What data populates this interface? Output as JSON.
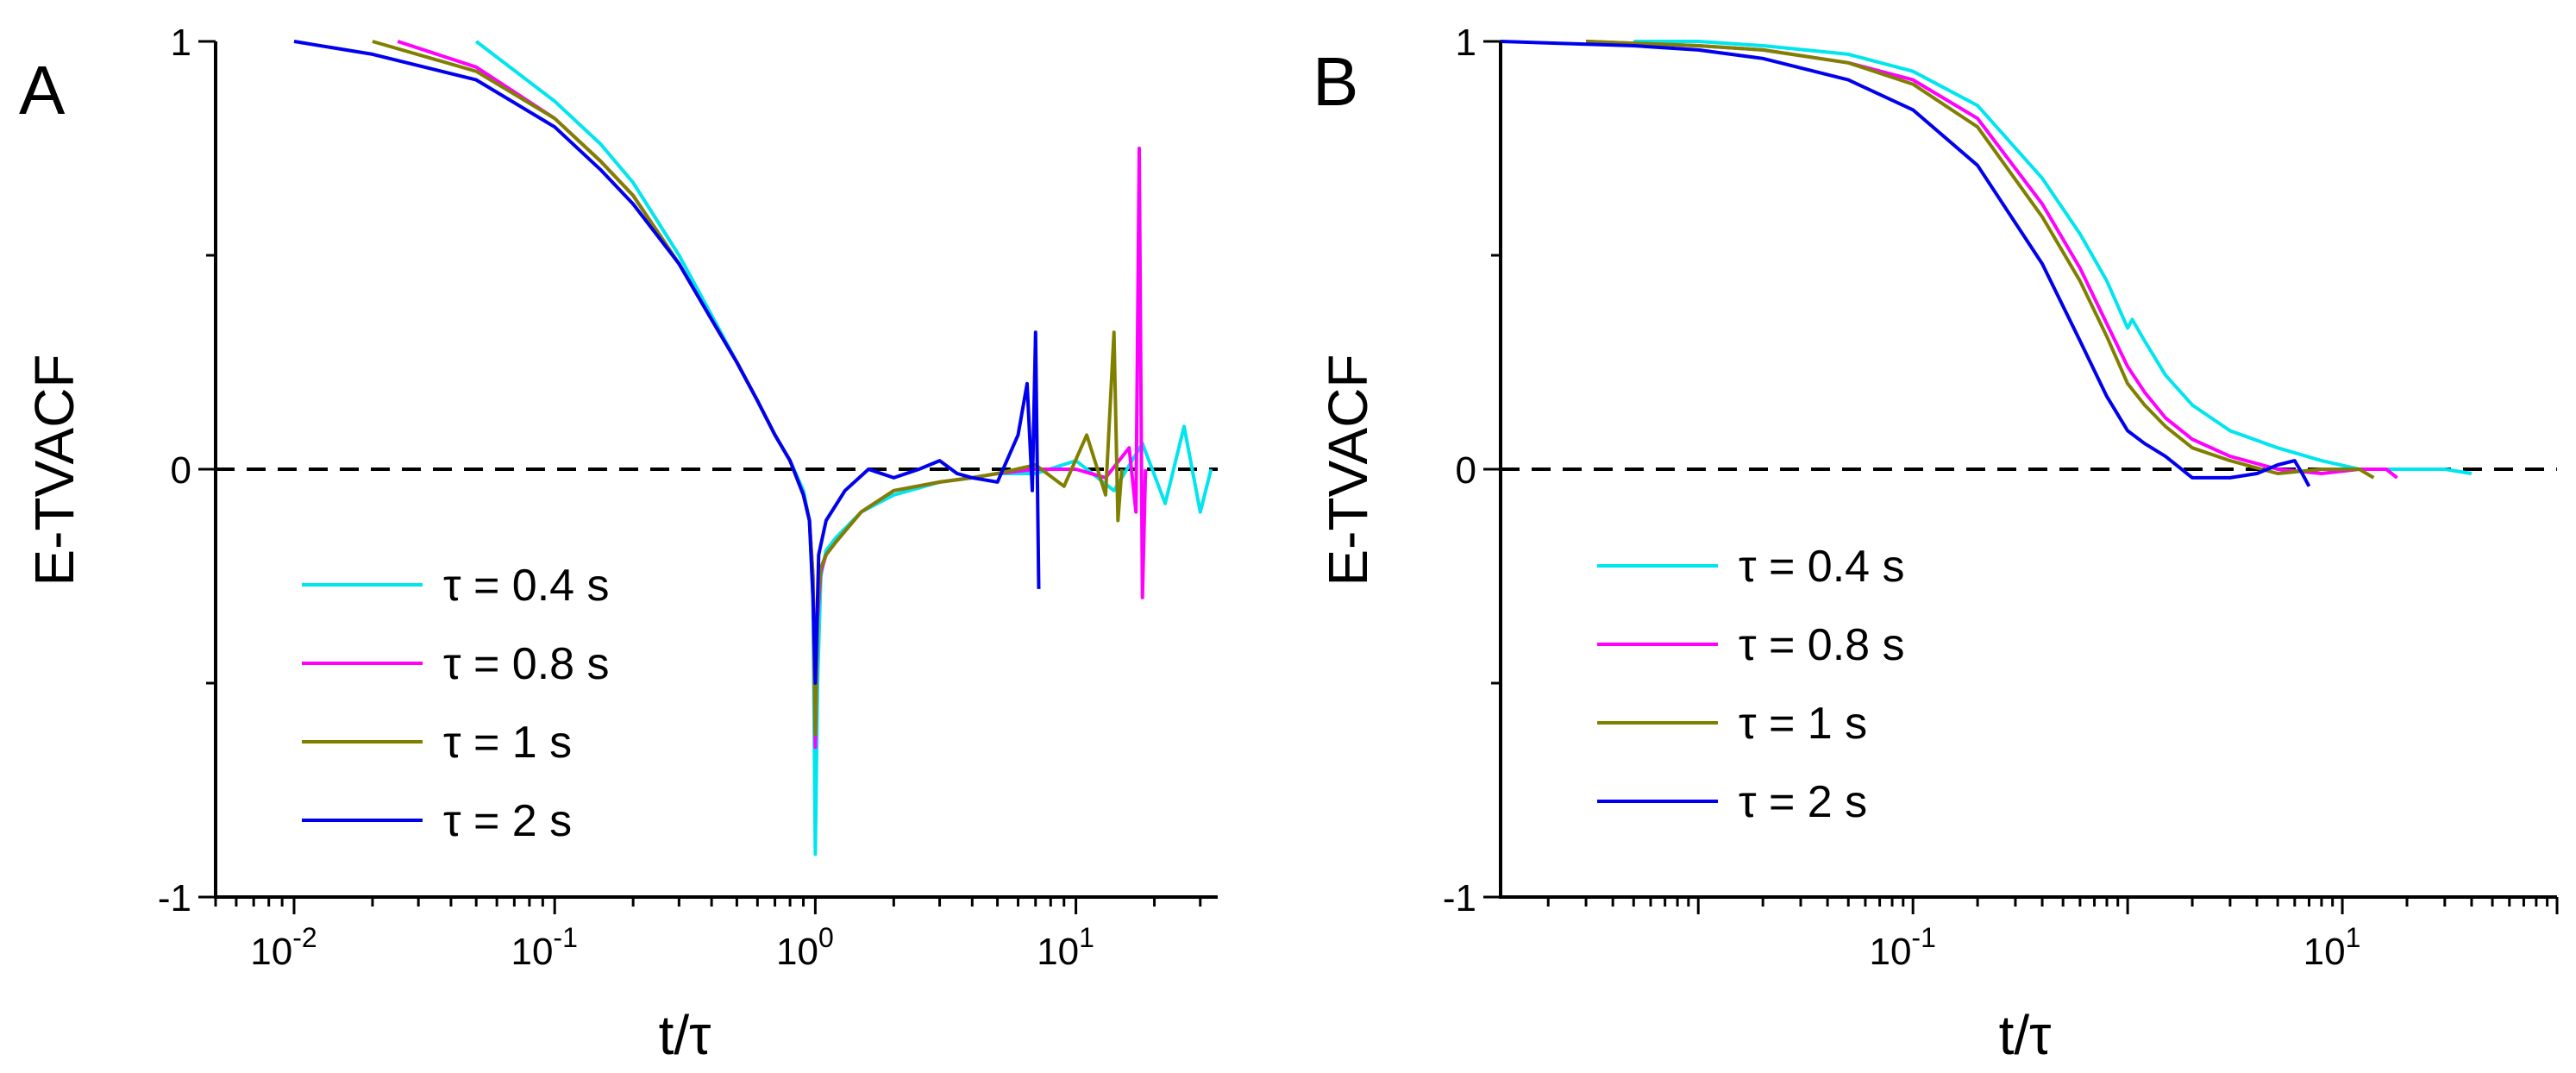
{
  "chart_data": [
    {
      "panel": "A",
      "type": "line",
      "xscale": "log",
      "xlabel": "t/τ",
      "ylabel": "E-TVACF",
      "xlim": [
        0.005,
        35
      ],
      "ylim": [
        -1,
        1
      ],
      "x_ticks": [
        {
          "value": 0.01,
          "label": "10",
          "exp": "-2"
        },
        {
          "value": 0.1,
          "label": "10",
          "exp": "-1"
        },
        {
          "value": 1,
          "label": "10",
          "exp": "0"
        },
        {
          "value": 10,
          "label": "10",
          "exp": "1"
        }
      ],
      "y_ticks": [
        {
          "value": 1,
          "label": "1"
        },
        {
          "value": 0,
          "label": "0"
        },
        {
          "value": -1,
          "label": "-1"
        }
      ],
      "reference_line": {
        "y": 0,
        "style": "dashed"
      },
      "legend_position": "bottom-left",
      "series": [
        {
          "name": "τ = 0.4 s",
          "color": "#00e5ee",
          "x": [
            0.05,
            0.1,
            0.15,
            0.2,
            0.3,
            0.4,
            0.5,
            0.6,
            0.7,
            0.8,
            0.9,
            0.95,
            0.98,
            1.0,
            1.02,
            1.05,
            1.1,
            1.2,
            1.5,
            2,
            3,
            4,
            5,
            7,
            10,
            14,
            18,
            22,
            26,
            30,
            33
          ],
          "y": [
            1,
            0.86,
            0.76,
            0.67,
            0.5,
            0.36,
            0.25,
            0.16,
            0.08,
            0.02,
            -0.05,
            -0.12,
            -0.3,
            -0.9,
            -0.5,
            -0.25,
            -0.19,
            -0.16,
            -0.1,
            -0.06,
            -0.03,
            -0.02,
            -0.01,
            -0.01,
            0.02,
            -0.05,
            0.06,
            -0.08,
            0.1,
            -0.1,
            0.0
          ]
        },
        {
          "name": "τ = 0.8 s",
          "color": "#ff00ff",
          "x": [
            0.025,
            0.05,
            0.1,
            0.15,
            0.2,
            0.3,
            0.4,
            0.5,
            0.6,
            0.7,
            0.8,
            0.9,
            0.95,
            0.98,
            1.0,
            1.02,
            1.05,
            1.1,
            1.2,
            1.5,
            2,
            3,
            4,
            5,
            7,
            10,
            13,
            16,
            17,
            17.5,
            18,
            18.5
          ],
          "y": [
            1,
            0.94,
            0.82,
            0.72,
            0.64,
            0.48,
            0.35,
            0.25,
            0.16,
            0.08,
            0.02,
            -0.06,
            -0.12,
            -0.25,
            -0.65,
            -0.35,
            -0.24,
            -0.2,
            -0.17,
            -0.1,
            -0.05,
            -0.03,
            -0.02,
            -0.01,
            0.0,
            0.0,
            -0.02,
            0.05,
            -0.1,
            0.75,
            -0.3,
            0.0
          ]
        },
        {
          "name": "τ = 1 s",
          "color": "#808000",
          "x": [
            0.02,
            0.05,
            0.1,
            0.15,
            0.2,
            0.3,
            0.4,
            0.5,
            0.6,
            0.7,
            0.8,
            0.9,
            0.95,
            0.98,
            1.0,
            1.02,
            1.05,
            1.1,
            1.2,
            1.5,
            2,
            3,
            4,
            5,
            7,
            9,
            11,
            13,
            14,
            14.5,
            15
          ],
          "y": [
            1,
            0.93,
            0.82,
            0.72,
            0.64,
            0.48,
            0.35,
            0.25,
            0.16,
            0.08,
            0.02,
            -0.06,
            -0.12,
            -0.25,
            -0.62,
            -0.33,
            -0.23,
            -0.2,
            -0.17,
            -0.1,
            -0.05,
            -0.03,
            -0.02,
            -0.01,
            0.01,
            -0.04,
            0.08,
            -0.06,
            0.32,
            -0.12,
            0.0
          ]
        },
        {
          "name": "τ = 2 s",
          "color": "#0000ee",
          "x": [
            0.01,
            0.02,
            0.05,
            0.1,
            0.15,
            0.2,
            0.3,
            0.4,
            0.5,
            0.6,
            0.7,
            0.8,
            0.9,
            0.95,
            0.98,
            1.0,
            1.03,
            1.1,
            1.3,
            1.6,
            2,
            2.5,
            3,
            3.5,
            4,
            5,
            6,
            6.5,
            6.8,
            7.0,
            7.2
          ],
          "y": [
            1,
            0.97,
            0.91,
            0.8,
            0.7,
            0.62,
            0.48,
            0.35,
            0.25,
            0.16,
            0.08,
            0.02,
            -0.06,
            -0.12,
            -0.3,
            -0.5,
            -0.2,
            -0.12,
            -0.05,
            0.0,
            -0.02,
            0.0,
            0.02,
            -0.01,
            -0.02,
            -0.03,
            0.08,
            0.2,
            -0.05,
            0.32,
            -0.28
          ]
        }
      ],
      "panel_letter": "A"
    },
    {
      "panel": "B",
      "type": "line",
      "xscale": "log",
      "xlabel": "t/τ",
      "ylabel": "E-TVACF",
      "xlim": [
        0.0012,
        100
      ],
      "ylim": [
        -1,
        1
      ],
      "x_ticks": [
        {
          "value": 0.1,
          "label": "10",
          "exp": "-1"
        },
        {
          "value": 10,
          "label": "10",
          "exp": "1"
        }
      ],
      "y_ticks": [
        {
          "value": 1,
          "label": "1"
        },
        {
          "value": 0,
          "label": "0"
        },
        {
          "value": -1,
          "label": "-1"
        }
      ],
      "reference_line": {
        "y": 0,
        "style": "dashed"
      },
      "legend_position": "bottom-left",
      "series": [
        {
          "name": "τ = 0.4 s",
          "color": "#00e5ee",
          "x": [
            0.005,
            0.01,
            0.02,
            0.05,
            0.1,
            0.2,
            0.4,
            0.6,
            0.8,
            1.0,
            1.05,
            1.2,
            1.5,
            2,
            3,
            5,
            8,
            12,
            20,
            30,
            40
          ],
          "y": [
            1,
            1,
            0.99,
            0.97,
            0.93,
            0.85,
            0.68,
            0.55,
            0.44,
            0.33,
            0.35,
            0.3,
            0.22,
            0.15,
            0.09,
            0.05,
            0.02,
            0.0,
            0.0,
            0.0,
            -0.01
          ]
        },
        {
          "name": "τ = 0.8 s",
          "color": "#ff00ff",
          "x": [
            0.003,
            0.01,
            0.02,
            0.05,
            0.1,
            0.2,
            0.4,
            0.6,
            0.8,
            1.0,
            1.2,
            1.5,
            2,
            3,
            5,
            8,
            12,
            16,
            18
          ],
          "y": [
            1,
            0.99,
            0.98,
            0.95,
            0.91,
            0.82,
            0.62,
            0.47,
            0.34,
            0.24,
            0.18,
            0.12,
            0.07,
            0.03,
            0.0,
            -0.01,
            0.0,
            0.0,
            -0.02
          ]
        },
        {
          "name": "τ = 1 s",
          "color": "#808000",
          "x": [
            0.003,
            0.01,
            0.02,
            0.05,
            0.1,
            0.2,
            0.4,
            0.6,
            0.8,
            1.0,
            1.2,
            1.5,
            2,
            3,
            5,
            8,
            12,
            14
          ],
          "y": [
            1,
            0.99,
            0.98,
            0.95,
            0.9,
            0.8,
            0.59,
            0.44,
            0.31,
            0.2,
            0.15,
            0.1,
            0.05,
            0.02,
            -0.01,
            0.0,
            0.0,
            -0.02
          ]
        },
        {
          "name": "τ = 2 s",
          "color": "#0000ee",
          "x": [
            0.0012,
            0.005,
            0.01,
            0.02,
            0.05,
            0.1,
            0.2,
            0.4,
            0.6,
            0.8,
            1.0,
            1.2,
            1.5,
            2,
            3,
            4,
            5,
            6,
            6.5,
            7
          ],
          "y": [
            1,
            0.99,
            0.98,
            0.96,
            0.91,
            0.84,
            0.71,
            0.48,
            0.3,
            0.17,
            0.09,
            0.06,
            0.03,
            -0.02,
            -0.02,
            -0.01,
            0.01,
            0.02,
            -0.01,
            -0.04
          ]
        }
      ],
      "panel_letter": "B"
    }
  ]
}
